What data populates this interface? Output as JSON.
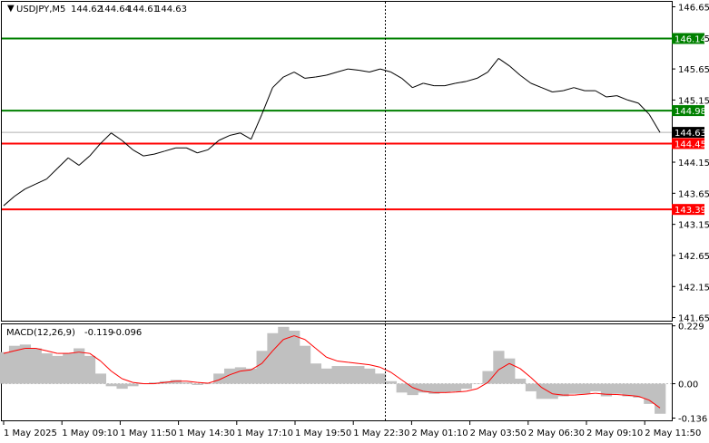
{
  "chart_data": [
    {
      "type": "line",
      "title": "USDJPY,M5",
      "ohlc": [
        "144.62",
        "144.64",
        "144.61",
        "144.63"
      ],
      "ylim": [
        141.6,
        146.73
      ],
      "yticks": [
        "146.65",
        "146.15",
        "145.65",
        "145.15",
        "144.15",
        "143.65",
        "143.15",
        "142.65",
        "142.15",
        "141.65"
      ],
      "x_labels": [
        "1 May 2025",
        "1 May 09:10",
        "1 May 11:50",
        "1 May 14:30",
        "1 May 17:10",
        "1 May 19:50",
        "1 May 22:30",
        "2 May 01:10",
        "2 May 03:50",
        "2 May 06:30",
        "2 May 09:10",
        "2 May 11:50"
      ],
      "levels": [
        {
          "value": 146.14,
          "label": "146.14",
          "color": "#008000"
        },
        {
          "value": 144.98,
          "label": "144.98",
          "color": "#008000"
        },
        {
          "value": 144.45,
          "label": "144.45",
          "color": "#ff0000"
        },
        {
          "value": 143.39,
          "label": "143.39",
          "color": "#ff0000"
        }
      ],
      "current_price": {
        "value": 144.63,
        "label": "144.63"
      },
      "series": [
        {
          "values": [
            143.45,
            143.6,
            143.72,
            143.8,
            143.88,
            144.05,
            144.22,
            144.1,
            144.25,
            144.45,
            144.62,
            144.5,
            144.35,
            144.25,
            144.28,
            144.33,
            144.38,
            144.38,
            144.3,
            144.35,
            144.5,
            144.58,
            144.62,
            144.52,
            144.92,
            145.35,
            145.52,
            145.6,
            145.5,
            145.52,
            145.55,
            145.6,
            145.65,
            145.63,
            145.6,
            145.65,
            145.6,
            145.5,
            145.35,
            145.42,
            145.38,
            145.38,
            145.42,
            145.45,
            145.5,
            145.6,
            145.82,
            145.7,
            145.55,
            145.42,
            145.35,
            145.28,
            145.3,
            145.35,
            145.3,
            145.3,
            145.2,
            145.22,
            145.15,
            145.1,
            144.92,
            144.63
          ]
        }
      ]
    },
    {
      "type": "bar",
      "title": "MACD(12,26,9)",
      "values_text": [
        "-0.119",
        "-0.096"
      ],
      "ylim": [
        -0.145,
        0.235
      ],
      "yticks": [
        "0.229",
        "0.00",
        "-0.136"
      ],
      "series": [
        {
          "name": "MACD",
          "values": [
            0.125,
            0.15,
            0.155,
            0.14,
            0.12,
            0.11,
            0.12,
            0.14,
            0.11,
            0.04,
            -0.01,
            -0.02,
            -0.01,
            0.0,
            0.005,
            0.01,
            0.015,
            0.005,
            -0.005,
            0.0,
            0.04,
            0.06,
            0.065,
            0.06,
            0.13,
            0.2,
            0.225,
            0.21,
            0.15,
            0.08,
            0.06,
            0.07,
            0.07,
            0.07,
            0.06,
            0.04,
            0.01,
            -0.035,
            -0.045,
            -0.035,
            -0.04,
            -0.035,
            -0.03,
            -0.02,
            0.0,
            0.05,
            0.13,
            0.1,
            0.02,
            -0.03,
            -0.06,
            -0.06,
            -0.05,
            -0.04,
            -0.04,
            -0.03,
            -0.05,
            -0.04,
            -0.05,
            -0.055,
            -0.08,
            -0.119
          ]
        },
        {
          "name": "Signal",
          "values": [
            0.12,
            0.13,
            0.14,
            0.14,
            0.13,
            0.12,
            0.12,
            0.125,
            0.12,
            0.09,
            0.05,
            0.02,
            0.005,
            0.0,
            0.0,
            0.005,
            0.01,
            0.01,
            0.005,
            0.002,
            0.015,
            0.035,
            0.05,
            0.055,
            0.08,
            0.13,
            0.175,
            0.19,
            0.175,
            0.14,
            0.105,
            0.09,
            0.085,
            0.08,
            0.075,
            0.065,
            0.045,
            0.015,
            -0.015,
            -0.03,
            -0.035,
            -0.035,
            -0.033,
            -0.03,
            -0.02,
            0.005,
            0.055,
            0.08,
            0.06,
            0.025,
            -0.015,
            -0.04,
            -0.045,
            -0.045,
            -0.042,
            -0.038,
            -0.042,
            -0.043,
            -0.046,
            -0.05,
            -0.065,
            -0.096
          ]
        }
      ]
    }
  ]
}
